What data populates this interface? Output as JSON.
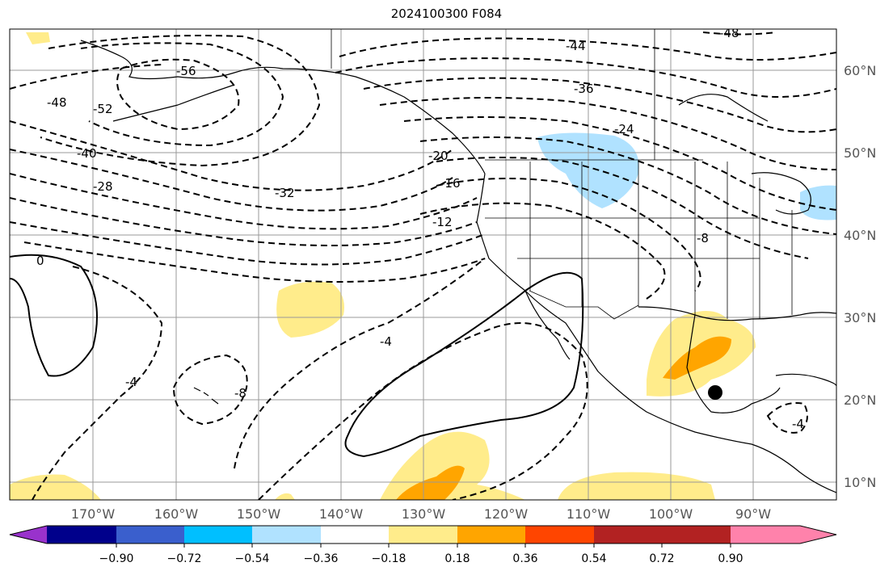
{
  "title": "2024100300 F084",
  "map": {
    "projection": "PlateCarree",
    "lon_labels": [
      "170°W",
      "160°W",
      "150°W",
      "140°W",
      "130°W",
      "120°W",
      "110°W",
      "100°W",
      "90°W"
    ],
    "lat_labels": [
      "60°N",
      "50°N",
      "40°N",
      "30°N",
      "20°N",
      "10°N"
    ],
    "contour_labels": [
      "-44",
      "-36",
      "-24",
      "-56",
      "-48",
      "-52",
      "-40",
      "-28",
      "-32",
      "-20",
      "-16",
      "-12",
      "-8",
      "-4",
      "0",
      "-4",
      "-8",
      "-4",
      "-48"
    ],
    "marker": "storm-center-dot"
  },
  "colorbar": {
    "ticks": [
      "−0.90",
      "−0.72",
      "−0.54",
      "−0.36",
      "−0.18",
      "0.18",
      "0.36",
      "0.54",
      "0.72",
      "0.90"
    ],
    "colors": [
      "#9932cc",
      "#00008b",
      "#3a5fcd",
      "#00bfff",
      "#b0e2ff",
      "#ffffff",
      "#ffec8b",
      "#ffa500",
      "#ff4500",
      "#b22222",
      "#ff82ab"
    ]
  }
}
